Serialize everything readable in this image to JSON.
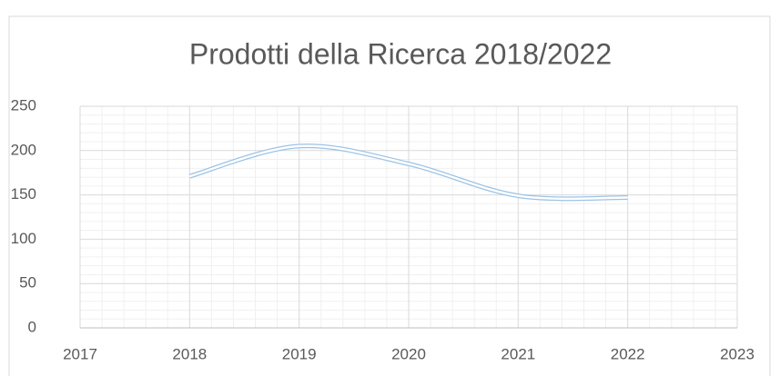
{
  "chart_data": {
    "type": "line",
    "title": "Prodotti della Ricerca 2018/2022",
    "x": [
      2018,
      2019,
      2020,
      2021,
      2022
    ],
    "series": [
      {
        "color": "#9dc3e6",
        "values": [
          171,
          205,
          185,
          149,
          147
        ]
      }
    ],
    "smooth": true,
    "xlim": [
      2017,
      2023
    ],
    "xticks": [
      2017,
      2018,
      2019,
      2020,
      2021,
      2022,
      2023
    ],
    "ylim": [
      0,
      250
    ],
    "yticks": [
      0,
      50,
      100,
      150,
      200,
      250
    ],
    "grid": true,
    "minor_grid": true
  }
}
